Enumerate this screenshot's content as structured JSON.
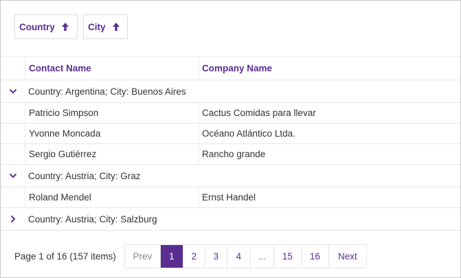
{
  "group_panel": [
    {
      "label": "Country",
      "sort": "ascending"
    },
    {
      "label": "City",
      "sort": "ascending"
    }
  ],
  "columns": [
    "Contact Name",
    "Company Name"
  ],
  "groups": [
    {
      "label": "Country: Argentina; City: Buenos Aires",
      "expanded": true,
      "rows": [
        [
          "Patricio Simpson",
          "Cactus Comidas para llevar"
        ],
        [
          "Yvonne Moncada",
          "Océano Atlántico Ltda."
        ],
        [
          "Sergio Gutiérrez",
          "Rancho grande"
        ]
      ]
    },
    {
      "label": "Country: Austria; City: Graz",
      "expanded": true,
      "rows": [
        [
          "Roland Mendel",
          "Ernst Handel"
        ]
      ]
    },
    {
      "label": "Country: Austria; City: Salzburg",
      "expanded": false,
      "rows": []
    }
  ],
  "pager": {
    "info": "Page 1 of 16 (157 items)",
    "prev": "Prev",
    "next": "Next",
    "pages": [
      "1",
      "2",
      "3",
      "4",
      "...",
      "15",
      "16"
    ],
    "current": "1"
  },
  "colors": {
    "accent": "#5a2d91"
  }
}
